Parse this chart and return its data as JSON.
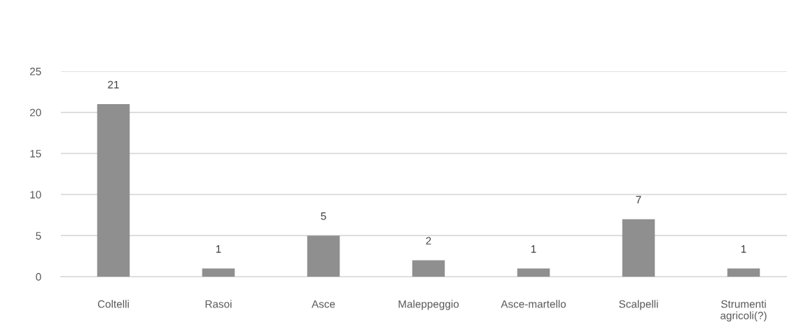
{
  "chart_data": {
    "type": "bar",
    "categories": [
      "Coltelli",
      "Rasoi",
      "Asce",
      "Maleppeggio",
      "Asce-martello",
      "Scalpelli",
      "Strumenti\nagricoli(?)"
    ],
    "values": [
      21,
      1,
      5,
      2,
      1,
      7,
      1
    ],
    "color": "#8f8f8f",
    "ylim": [
      0,
      25
    ],
    "yticks": [
      0,
      5,
      10,
      15,
      20,
      25
    ],
    "grid": "y",
    "data_labels": true,
    "legend": false
  }
}
